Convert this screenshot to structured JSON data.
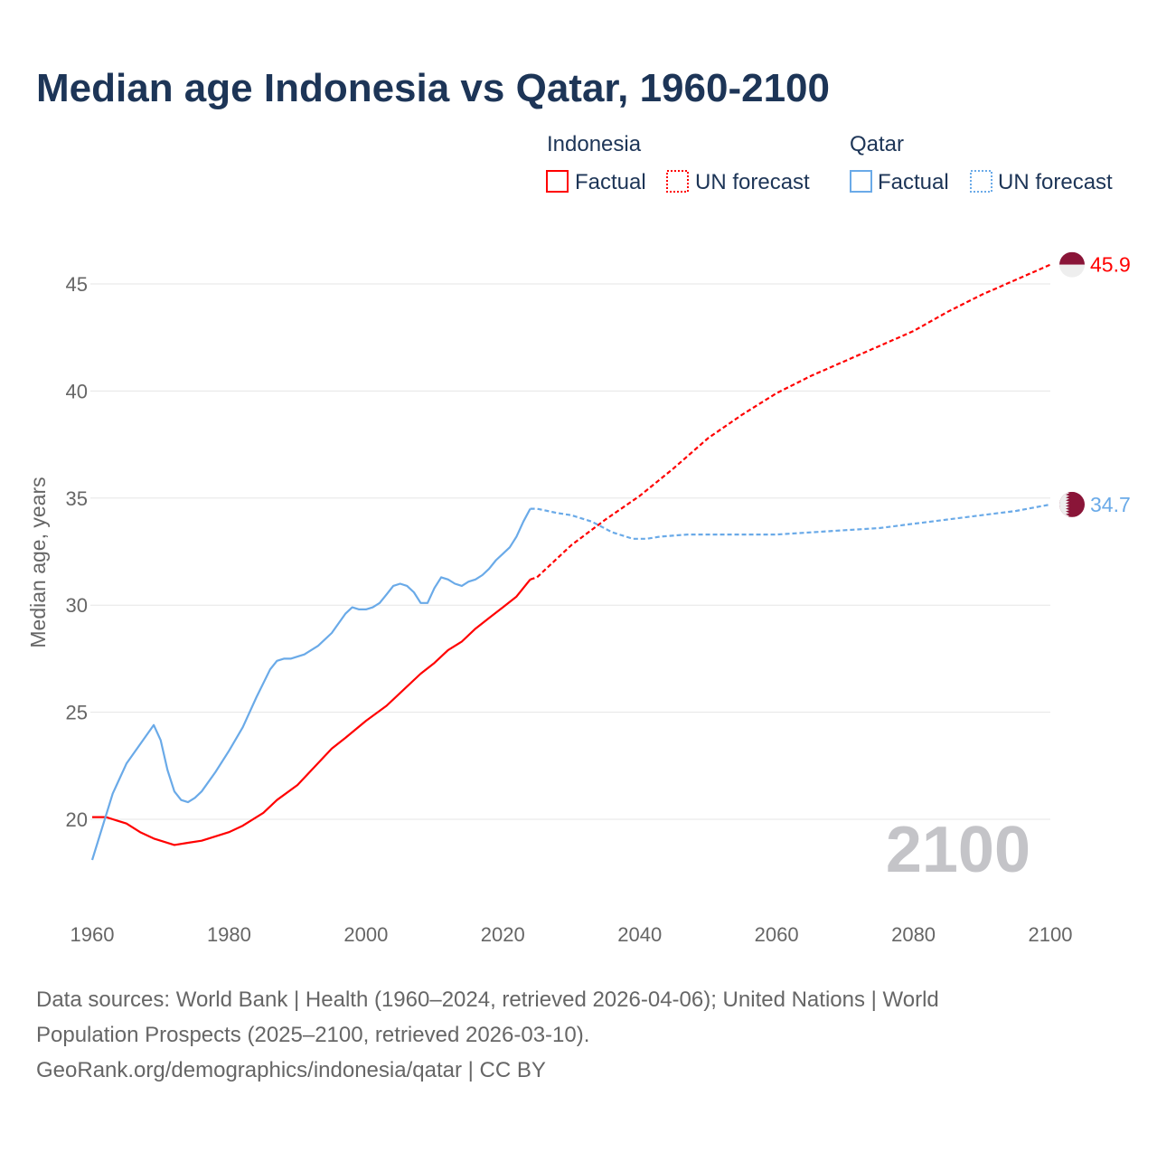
{
  "title": "Median age Indonesia vs Qatar, 1960-2100",
  "legend": {
    "groups": [
      {
        "name": "Indonesia",
        "factual": "Factual",
        "forecast": "UN forecast",
        "color": "#ff0000"
      },
      {
        "name": "Qatar",
        "factual": "Factual",
        "forecast": "UN forecast",
        "color": "#6aaae8"
      }
    ]
  },
  "year_watermark": "2100",
  "source_line1": "Data sources: World Bank | Health (1960–2024, retrieved 2026-04-06); United Nations | World",
  "source_line2": "Population Prospects (2025–2100, retrieved 2026-03-10).",
  "source_line3": "GeoRank.org/demographics/indonesia/qatar | CC BY",
  "chart_data": {
    "type": "line",
    "title": "Median age Indonesia vs Qatar, 1960-2100",
    "xlabel": "",
    "ylabel": "Median age, years",
    "xlim": [
      1960,
      2100
    ],
    "ylim": [
      17,
      46
    ],
    "xticks": [
      1960,
      1980,
      2000,
      2020,
      2040,
      2060,
      2080,
      2100
    ],
    "yticks": [
      20,
      25,
      30,
      35,
      40,
      45
    ],
    "grid": true,
    "legend_position": "top-right",
    "series": [
      {
        "name": "Indonesia Factual",
        "color": "#ff0000",
        "dashed": false,
        "x": [
          1960,
          1962,
          1965,
          1967,
          1969,
          1972,
          1974,
          1976,
          1978,
          1980,
          1982,
          1985,
          1987,
          1990,
          1995,
          1997,
          2000,
          2003,
          2005,
          2008,
          2010,
          2012,
          2014,
          2016,
          2018,
          2020,
          2022,
          2024
        ],
        "y": [
          20.1,
          20.1,
          19.8,
          19.4,
          19.1,
          18.8,
          18.9,
          19.0,
          19.2,
          19.4,
          19.7,
          20.3,
          20.9,
          21.6,
          23.3,
          23.8,
          24.6,
          25.3,
          25.9,
          26.8,
          27.3,
          27.9,
          28.3,
          28.9,
          29.4,
          29.9,
          30.4,
          31.2
        ]
      },
      {
        "name": "Indonesia UN forecast",
        "color": "#ff0000",
        "dashed": true,
        "x": [
          2024,
          2025,
          2030,
          2035,
          2040,
          2045,
          2050,
          2055,
          2060,
          2065,
          2070,
          2075,
          2080,
          2085,
          2090,
          2095,
          2100
        ],
        "y": [
          31.2,
          31.3,
          32.8,
          34.0,
          35.1,
          36.4,
          37.8,
          38.9,
          39.9,
          40.7,
          41.4,
          42.1,
          42.8,
          43.7,
          44.5,
          45.2,
          45.9
        ]
      },
      {
        "name": "Qatar Factual",
        "color": "#6aaae8",
        "dashed": false,
        "x": [
          1960,
          1963,
          1965,
          1969,
          1970,
          1971,
          1972,
          1973,
          1974,
          1975,
          1976,
          1978,
          1980,
          1982,
          1984,
          1986,
          1987,
          1988,
          1989,
          1991,
          1993,
          1995,
          1997,
          1998,
          1999,
          2000,
          2001,
          2002,
          2003,
          2004,
          2005,
          2006,
          2007,
          2008,
          2009,
          2010,
          2011,
          2012,
          2013,
          2014,
          2015,
          2016,
          2017,
          2018,
          2019,
          2020,
          2021,
          2022,
          2023,
          2024
        ],
        "y": [
          18.1,
          21.2,
          22.6,
          24.4,
          23.7,
          22.3,
          21.3,
          20.9,
          20.8,
          21.0,
          21.3,
          22.2,
          23.2,
          24.3,
          25.7,
          27.0,
          27.4,
          27.5,
          27.5,
          27.7,
          28.1,
          28.7,
          29.6,
          29.9,
          29.8,
          29.8,
          29.9,
          30.1,
          30.5,
          30.9,
          31.0,
          30.9,
          30.6,
          30.1,
          30.1,
          30.8,
          31.3,
          31.2,
          31.0,
          30.9,
          31.1,
          31.2,
          31.4,
          31.7,
          32.1,
          32.4,
          32.7,
          33.2,
          33.9,
          34.5
        ]
      },
      {
        "name": "Qatar UN forecast",
        "color": "#6aaae8",
        "dashed": true,
        "x": [
          2024,
          2025,
          2028,
          2030,
          2033,
          2036,
          2039,
          2041,
          2043,
          2047,
          2050,
          2060,
          2065,
          2070,
          2075,
          2080,
          2085,
          2090,
          2095,
          2100
        ],
        "y": [
          34.5,
          34.5,
          34.3,
          34.2,
          33.9,
          33.4,
          33.1,
          33.1,
          33.2,
          33.3,
          33.3,
          33.3,
          33.4,
          33.5,
          33.6,
          33.8,
          34.0,
          34.2,
          34.4,
          34.7
        ]
      }
    ],
    "end_labels": [
      {
        "country": "Indonesia",
        "value": "45.9",
        "y": 45.9,
        "color": "#ff0000"
      },
      {
        "country": "Qatar",
        "value": "34.7",
        "y": 34.7,
        "color": "#6aaae8"
      }
    ]
  }
}
